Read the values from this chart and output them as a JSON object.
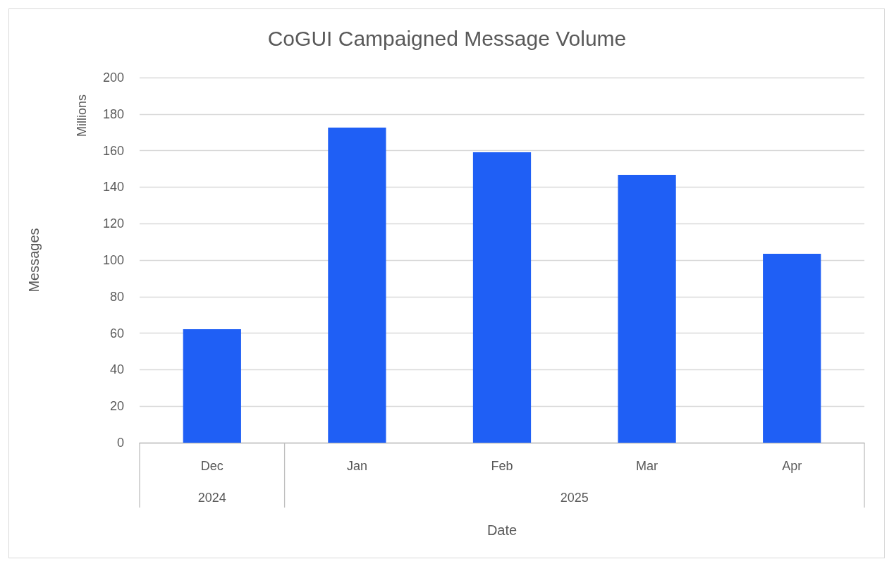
{
  "chart_data": {
    "type": "bar",
    "title": "CoGUI Campaigned Message Volume",
    "xlabel": "Date",
    "ylabel": "Messages",
    "categories": [
      "Dec",
      "Jan",
      "Feb",
      "Mar",
      "Apr"
    ],
    "values": [
      62.2,
      172.6,
      159.1,
      146.7,
      103.5
    ],
    "color": "#1f5ff5",
    "ylim": [
      0,
      200
    ],
    "yticks": [
      0,
      20,
      40,
      60,
      80,
      100,
      120,
      140,
      160,
      180,
      200
    ],
    "grid": "y",
    "annotations": [
      "Millions",
      "2024",
      "2025"
    ]
  }
}
